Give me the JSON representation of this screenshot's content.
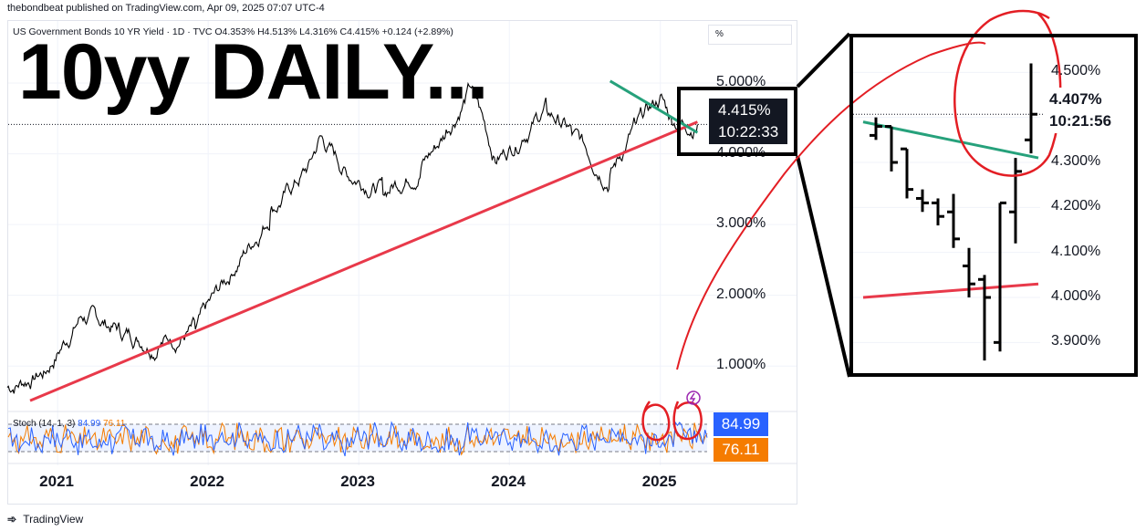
{
  "header": {
    "credit": "thebondbeat published on TradingView.com, Apr 09, 2025 07:07 UTC-4",
    "legend": "US Government Bonds 10 YR Yield · 1D · TVC  O4.353%  H4.513%  L4.316%  C4.415%  +0.124 (+2.89%)",
    "percent_button": "%"
  },
  "annotation": {
    "title": "10yy DAILY..."
  },
  "price_label": {
    "value": "4.415%",
    "countdown": "10:22:33"
  },
  "stoch": {
    "legend": "Stoch (14, 1, 3)",
    "k_legend": "84.99",
    "d_legend": "76.11",
    "k_value": "84.99",
    "d_value": "76.11"
  },
  "zoom": {
    "value": "4.407%",
    "countdown": "10:21:56"
  },
  "footer": {
    "brand": "TradingView"
  },
  "colors": {
    "price": "#000000",
    "support": "#e8394a",
    "resistance": "#26a17b",
    "stoch_k": "#2962ff",
    "stoch_d": "#f57c00",
    "annotation": "#e31e24"
  },
  "chart_data": [
    {
      "type": "line",
      "title": "US Government Bonds 10 YR Yield",
      "x": [
        "2020-09",
        "2020-12",
        "2021-03",
        "2021-06",
        "2021-09",
        "2021-12",
        "2022-03",
        "2022-06",
        "2022-09",
        "2022-10",
        "2022-12",
        "2023-03",
        "2023-06",
        "2023-08",
        "2023-10",
        "2023-12",
        "2024-02",
        "2024-04",
        "2024-06",
        "2024-09",
        "2024-11",
        "2025-01",
        "2025-02",
        "2025-04"
      ],
      "series": [
        {
          "values": [
            0.7,
            0.92,
            1.72,
            1.52,
            1.3,
            1.52,
            2.35,
            3.15,
            3.8,
            4.25,
            3.75,
            3.5,
            3.8,
            4.3,
            4.95,
            3.9,
            4.25,
            4.65,
            4.3,
            3.65,
            4.4,
            4.78,
            4.45,
            4.415
          ]
        }
      ],
      "x_ticks": [
        "2021",
        "2022",
        "2023",
        "2024",
        "2025"
      ],
      "y_ticks": [
        "1.000%",
        "2.000%",
        "3.000%",
        "4.000%",
        "5.000%"
      ],
      "ylim": [
        0.5,
        5.4
      ],
      "support_trendline": {
        "from": [
          "2020-09",
          0.55
        ],
        "to": [
          "2025-04",
          4.45
        ]
      },
      "resistance_trendline": {
        "from": [
          "2025-01",
          4.9
        ],
        "to": [
          "2025-04",
          4.3
        ]
      },
      "grid": true
    },
    {
      "type": "line",
      "title": "Stoch (14, 1, 3)",
      "series": [
        {
          "name": "84.99",
          "values": [
            40,
            70,
            30,
            80,
            20,
            60,
            90,
            35,
            75,
            15,
            85,
            50,
            25,
            80,
            60,
            20,
            70,
            90,
            40,
            85
          ]
        },
        {
          "name": "76.11",
          "values": [
            50,
            55,
            45,
            60,
            40,
            55,
            75,
            55,
            60,
            35,
            65,
            55,
            40,
            60,
            65,
            40,
            55,
            80,
            55,
            76
          ]
        }
      ],
      "ylim": [
        0,
        100
      ]
    },
    {
      "type": "line",
      "title": "",
      "y_ticks": [
        "3.900%",
        "4.000%",
        "4.100%",
        "4.200%",
        "4.300%",
        "4.400%",
        "4.500%"
      ],
      "ylim": [
        3.85,
        4.6
      ],
      "bars": [
        {
          "high": 4.4,
          "low": 4.35,
          "open": 4.36,
          "close": 4.38
        },
        {
          "high": 4.38,
          "low": 4.28,
          "open": 4.38,
          "close": 4.3
        },
        {
          "high": 4.33,
          "low": 4.22,
          "open": 4.33,
          "close": 4.24
        },
        {
          "high": 4.24,
          "low": 4.19,
          "open": 4.22,
          "close": 4.21
        },
        {
          "high": 4.22,
          "low": 4.16,
          "open": 4.21,
          "close": 4.18
        },
        {
          "high": 4.23,
          "low": 4.11,
          "open": 4.19,
          "close": 4.13
        },
        {
          "high": 4.11,
          "low": 4.0,
          "open": 4.07,
          "close": 4.03
        },
        {
          "high": 4.05,
          "low": 3.86,
          "open": 4.04,
          "close": 4.0
        },
        {
          "high": 4.21,
          "low": 3.88,
          "open": 3.9,
          "close": 4.21
        },
        {
          "high": 4.31,
          "low": 4.12,
          "open": 4.19,
          "close": 4.28
        },
        {
          "high": 4.52,
          "low": 4.32,
          "open": 4.35,
          "close": 4.407
        }
      ]
    }
  ]
}
